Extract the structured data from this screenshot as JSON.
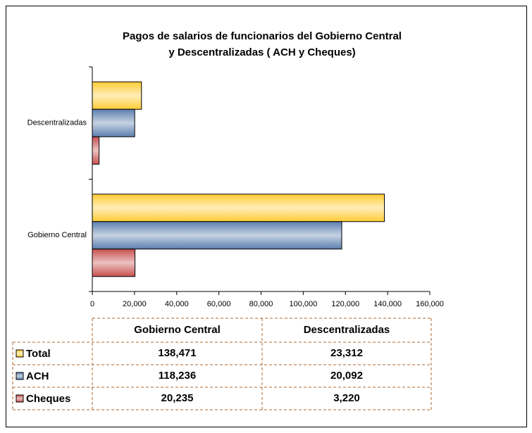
{
  "chart_data": {
    "type": "bar",
    "orientation": "horizontal",
    "title": [
      "Pagos de salarios de funcionarios del Gobierno Central",
      "y  Descentralizadas ( ACH y Cheques)"
    ],
    "categories": [
      "Gobierno Central",
      "Descentralizadas"
    ],
    "series": [
      {
        "name": "Total",
        "color": "#ffcc33",
        "values": [
          138471,
          23312
        ],
        "value_labels": [
          "138,471",
          "23,312"
        ]
      },
      {
        "name": "ACH",
        "color": "#5b7fae",
        "values": [
          118236,
          20092
        ],
        "value_labels": [
          "118,236",
          "20,092"
        ]
      },
      {
        "name": "Cheques",
        "color": "#c8504f",
        "values": [
          20235,
          3220
        ],
        "value_labels": [
          "20,235",
          "3,220"
        ]
      }
    ],
    "xlim": [
      0,
      160000
    ],
    "xticks": [
      0,
      {
        "value": 20000,
        "label": "20,000"
      },
      {
        "value": 40000,
        "label": "40,000"
      },
      {
        "value": 60000,
        "label": "60,000"
      },
      {
        "value": 80000,
        "label": "80,000"
      },
      {
        "value": 100000,
        "label": "100,000"
      },
      {
        "value": 120000,
        "label": "120,000"
      },
      {
        "value": 140000,
        "label": "140,000"
      },
      {
        "value": 160000,
        "label": "160,000"
      }
    ],
    "grid": false,
    "data_table": true
  }
}
